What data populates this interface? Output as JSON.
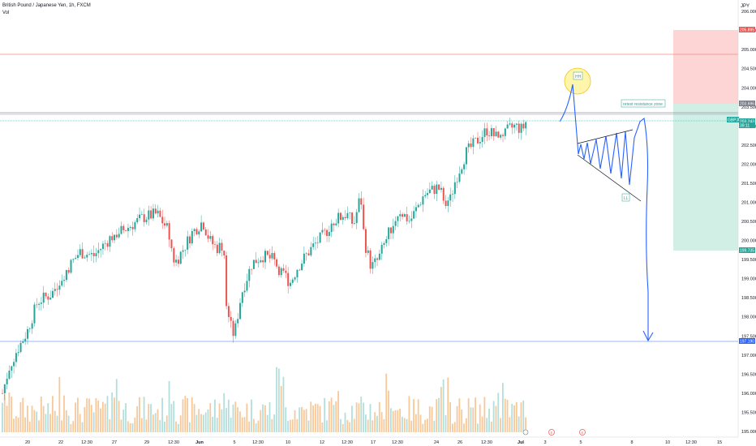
{
  "legend": {
    "title": "British Pound / Japanese Yen, 1h, FXCM",
    "volume_label": "Vol"
  },
  "axis_unit": "JPY",
  "colors": {
    "bull": "#26a69a",
    "bear": "#ef5350",
    "vol_bull": "#f6c89a",
    "vol_bear": "#b2dfdb",
    "drawing": "#2962ff",
    "target_zone": "#fdd5d5",
    "stop_zone": "#d2efe6",
    "resistance_line": "#f28b82",
    "support_line": "#7b9ff0",
    "grid": "#f0f3fa"
  },
  "chart_data": {
    "type": "candlestick",
    "title": "British Pound / Japanese Yen, 1h, FXCM",
    "ylabel": "JPY",
    "ylim": [
      194.85,
      206.3
    ],
    "y_ticks": [
      "206.000",
      "205.500",
      "205.000",
      "204.500",
      "204.000",
      "203.500",
      "203.000",
      "202.500",
      "202.000",
      "201.500",
      "201.000",
      "200.500",
      "200.000",
      "199.500",
      "199.000",
      "198.500",
      "198.000",
      "197.500",
      "197.000",
      "196.500",
      "196.000",
      "195.500",
      "195.000"
    ],
    "x_ticks": [
      "20",
      "22",
      "12:30",
      "27",
      "29",
      "12:30",
      "Jun",
      "5",
      "12:30",
      "10",
      "12",
      "12:30",
      "17",
      "12:30",
      "24",
      "26",
      "12:30",
      "Jul",
      "3",
      "5",
      "8",
      "10",
      "12:30",
      "15"
    ],
    "price_path": [
      [
        0,
        196.0
      ],
      [
        0.01,
        196.7
      ],
      [
        0.02,
        197.1
      ],
      [
        0.035,
        197.6
      ],
      [
        0.05,
        198.4
      ],
      [
        0.07,
        198.6
      ],
      [
        0.09,
        199.2
      ],
      [
        0.11,
        199.7
      ],
      [
        0.13,
        199.6
      ],
      [
        0.155,
        200.1
      ],
      [
        0.175,
        200.3
      ],
      [
        0.2,
        200.6
      ],
      [
        0.22,
        200.7
      ],
      [
        0.235,
        200.3
      ],
      [
        0.245,
        199.4
      ],
      [
        0.255,
        199.7
      ],
      [
        0.27,
        200.2
      ],
      [
        0.285,
        200.5
      ],
      [
        0.295,
        200.0
      ],
      [
        0.305,
        199.8
      ],
      [
        0.315,
        199.9
      ],
      [
        0.32,
        198.0
      ],
      [
        0.33,
        197.5
      ],
      [
        0.34,
        198.6
      ],
      [
        0.355,
        199.4
      ],
      [
        0.37,
        199.6
      ],
      [
        0.385,
        199.5
      ],
      [
        0.4,
        199.1
      ],
      [
        0.41,
        198.9
      ],
      [
        0.42,
        199.3
      ],
      [
        0.44,
        199.8
      ],
      [
        0.46,
        200.2
      ],
      [
        0.47,
        200.5
      ],
      [
        0.49,
        200.7
      ],
      [
        0.5,
        200.4
      ],
      [
        0.51,
        201.2
      ],
      [
        0.515,
        200.0
      ],
      [
        0.525,
        199.3
      ],
      [
        0.535,
        199.5
      ],
      [
        0.55,
        200.2
      ],
      [
        0.565,
        200.8
      ],
      [
        0.58,
        200.5
      ],
      [
        0.6,
        201.2
      ],
      [
        0.62,
        201.4
      ],
      [
        0.635,
        200.9
      ],
      [
        0.645,
        201.6
      ],
      [
        0.66,
        202.3
      ],
      [
        0.675,
        202.6
      ],
      [
        0.69,
        202.9
      ],
      [
        0.71,
        202.6
      ],
      [
        0.72,
        202.9
      ],
      [
        0.73,
        203.0
      ],
      [
        0.74,
        202.9
      ],
      [
        0.745,
        203.1
      ]
    ],
    "volume_label": "Vol",
    "price_badges": [
      {
        "label": "205.895",
        "color": "#ef5350"
      },
      {
        "label": "203.696",
        "color": "#787b86"
      },
      {
        "label": "GBPJPY",
        "color": "#26a69a"
      },
      {
        "label": "203.243",
        "color": "#26a69a"
      },
      {
        "label": "39:11",
        "color": "#26a69a"
      },
      {
        "label": "199.735",
        "color": "#26a69a"
      },
      {
        "label": "197.190",
        "color": "#2962ff"
      }
    ],
    "event_markers": [
      "E",
      "E"
    ]
  },
  "drawings": {
    "hh_label": "HH",
    "ll_label": "LL",
    "resistance_label": "retest resistance zone"
  }
}
